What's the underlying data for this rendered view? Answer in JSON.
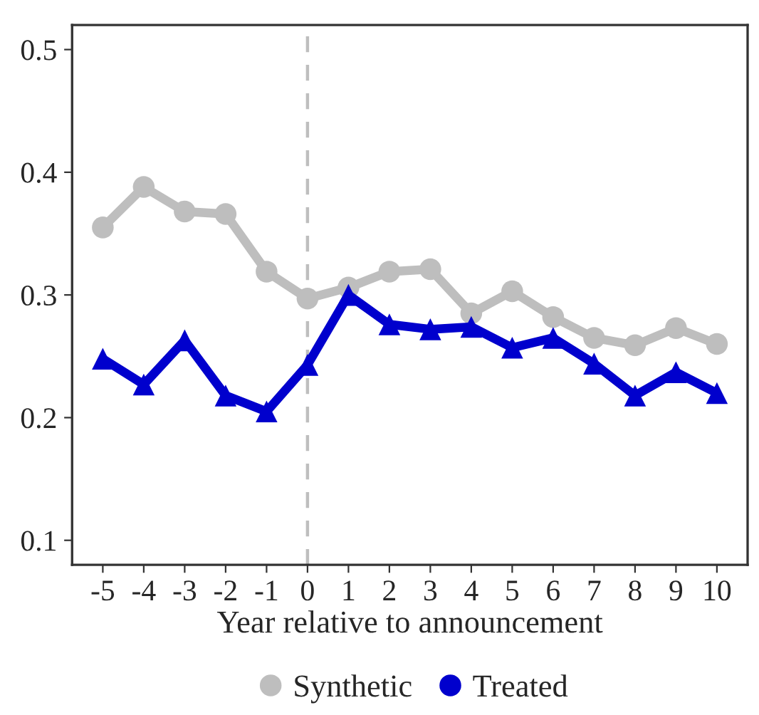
{
  "chart_data": {
    "type": "line",
    "xlabel": "Year relative to announcement",
    "x": [
      -5,
      -4,
      -3,
      -2,
      -1,
      0,
      1,
      2,
      3,
      4,
      5,
      6,
      7,
      8,
      9,
      10
    ],
    "series": [
      {
        "name": "Synthetic",
        "color": "#bebebe",
        "marker": "circle",
        "values": [
          0.355,
          0.388,
          0.368,
          0.366,
          0.319,
          0.297,
          0.306,
          0.319,
          0.321,
          0.285,
          0.303,
          0.282,
          0.265,
          0.259,
          0.273,
          0.26
        ]
      },
      {
        "name": "Treated",
        "color": "#0000cd",
        "marker": "triangle",
        "values": [
          0.248,
          0.227,
          0.263,
          0.218,
          0.205,
          0.243,
          0.3,
          0.276,
          0.272,
          0.274,
          0.257,
          0.265,
          0.244,
          0.218,
          0.237,
          0.22
        ]
      }
    ],
    "xlim": [
      -5.75,
      10.75
    ],
    "xticks": [
      -5,
      -4,
      -3,
      -2,
      -1,
      0,
      1,
      2,
      3,
      4,
      5,
      6,
      7,
      8,
      9,
      10
    ],
    "ylim": [
      0.08,
      0.52
    ],
    "yticks": [
      0.1,
      0.2,
      0.3,
      0.4,
      0.5
    ],
    "ref_lines": [
      {
        "axis": "x",
        "value": 0,
        "color": "#bebebe",
        "line_style": "dashed"
      }
    ],
    "grid": false,
    "legend": "bottom",
    "line_style": "solid"
  }
}
